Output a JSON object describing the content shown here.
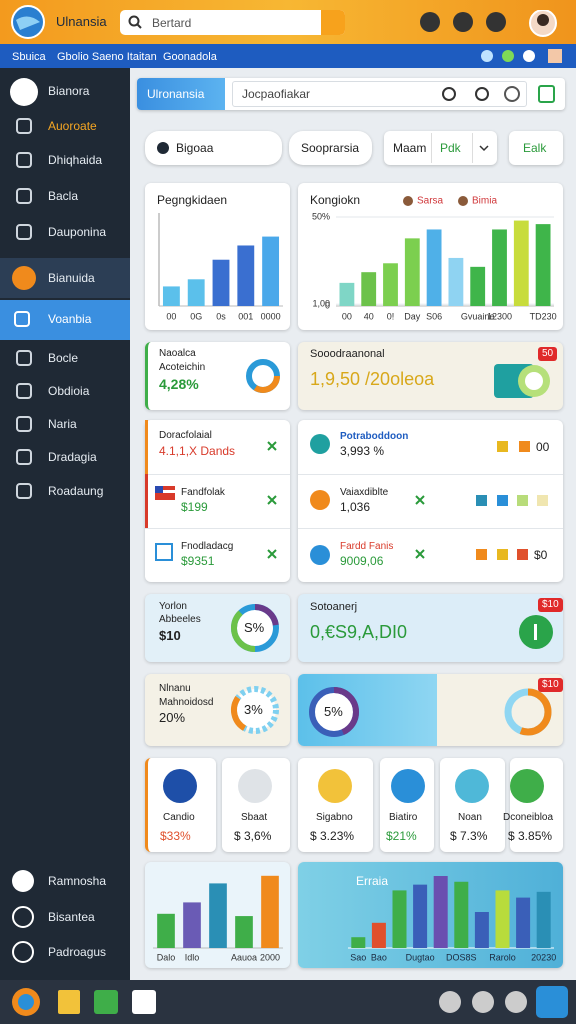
{
  "topbar": {
    "app_name": "Ulnansia",
    "search": "Bertard"
  },
  "menubar": [
    "Sbuica",
    "Gbolio Saeno Itaitan",
    "Goonadola"
  ],
  "sidebar": {
    "header": "Bianora",
    "items": [
      "Auoroate",
      "Dhiqhaida",
      "Bacla",
      "Dauponina",
      "Bianuida",
      "Voanbia",
      "Bocle",
      "Obdioia",
      "Naria",
      "Dradagia",
      "Roadaung"
    ],
    "footer": [
      "Ramnosha",
      "Bisantea",
      "Padroagus"
    ]
  },
  "toolbar": {
    "brand": "Ulronansia",
    "search": "Jocpaofiakar"
  },
  "filters": [
    "Bigoaa",
    "Sooprarsia",
    "Maam",
    "Pdk",
    "Ealk"
  ],
  "chart_data": [
    {
      "type": "bar",
      "title": "Pegngkidaen",
      "categories": [
        "00",
        "0G",
        "0s",
        "001",
        "0000"
      ],
      "values": [
        22,
        30,
        52,
        68,
        78
      ],
      "colors": [
        "#5bc0eb",
        "#5bc0eb",
        "#3a6fd0",
        "#3a6fd0",
        "#4aa8ea"
      ],
      "ylim": [
        0,
        100
      ]
    },
    {
      "type": "bar",
      "title": "Kongiokn",
      "legend": [
        "Sarsa",
        "Bimia"
      ],
      "legend_colors": [
        "#d0383b",
        "#d0383b"
      ],
      "categories": [
        "00",
        "40",
        "0!",
        "Day",
        "S06",
        null,
        "Gvuaine",
        "12300",
        null,
        "TD230"
      ],
      "values": [
        13,
        19,
        24,
        38,
        43,
        27,
        22,
        43,
        48,
        46
      ],
      "colors": [
        "#7fd6c6",
        "#6cc24a",
        "#7ccf4f",
        "#7ccf4f",
        "#4fb0e8",
        "#8fd3f2",
        "#3fb54a",
        "#3fb54a",
        "#c8dc3c",
        "#3fb54a"
      ],
      "ylim": [
        0,
        50
      ],
      "yticks": [
        0,
        {
          "value": 1,
          "label": "1,00"
        },
        {
          "value": 50,
          "label": "50%"
        }
      ],
      "grid": true
    },
    {
      "type": "bar",
      "categories": [
        "Dalo",
        "Idlo",
        null,
        "Aauoa",
        "2000"
      ],
      "values": [
        45,
        60,
        85,
        42,
        95
      ],
      "colors": [
        "#3fae49",
        "#6a5bb5",
        "#2a8fb5",
        "#3fae49",
        "#f08a1c"
      ],
      "ylim": [
        0,
        100
      ]
    },
    {
      "type": "bar",
      "title": "Erraia",
      "categories": [
        "Sao",
        "Bao",
        null,
        "Dugtao",
        null,
        "DOS8S",
        null,
        "Rarolo",
        null,
        "20230"
      ],
      "values": [
        15,
        35,
        80,
        88,
        100,
        92,
        50,
        80,
        70,
        78
      ],
      "colors": [
        "#3fae49",
        "#e0502c",
        "#3fae49",
        "#3a5fb8",
        "#6a4fb0",
        "#3fae49",
        "#3a5fb8",
        "#b8dc3c",
        "#3a5fb8",
        "#2a8fb5"
      ],
      "ylim": [
        0,
        100
      ]
    }
  ],
  "cards": {
    "kpi1": {
      "label": [
        "Naoalca",
        "Acoteichin"
      ],
      "value": "4,28%"
    },
    "kpi2": {
      "label": "Sooodraanonal",
      "value": "1,9,50 /20oleoa",
      "badge": "50"
    },
    "list_left": [
      {
        "label": "Doracfolaial",
        "value": "4.1,1,X Dands"
      },
      {
        "label": "Fandfolak",
        "value": "$199"
      },
      {
        "label": "Fnodladacg",
        "value": "$9351"
      }
    ],
    "list_right": [
      {
        "label": "Potraboddoon",
        "value": "3,993 %",
        "extra": "00"
      },
      {
        "label": "Vaiaxdiblte",
        "value": "1,036"
      },
      {
        "label": "Fardd Fanis",
        "value": "9009,06",
        "extra": "$0"
      }
    ],
    "gauge_left1": {
      "label": [
        "Yorlon",
        "Abbeeles"
      ],
      "value": "$10",
      "gauge": "S%"
    },
    "big1": {
      "label": "Sotoanerj",
      "value": "0,€S9,A,DI0",
      "badge": "$10"
    },
    "gauge_left2": {
      "label": [
        "Nlnanu",
        "Mahnoidosd"
      ],
      "value": "20%",
      "gauge": "3%"
    },
    "big2": {
      "gauge": "5%",
      "badge": "$10"
    },
    "apps": [
      {
        "name": "Candio",
        "value": "$33%"
      },
      {
        "name": "Sbaat",
        "value": "$ 3,6%"
      },
      {
        "name": "Sigabno",
        "value": "$ 3.23%"
      },
      {
        "name": "Biatiro",
        "value": "$21%"
      },
      {
        "name": "Noan",
        "value": "$ 7.3%"
      },
      {
        "name": "Dconeibloa",
        "value": "$ 3.85%"
      }
    ]
  }
}
